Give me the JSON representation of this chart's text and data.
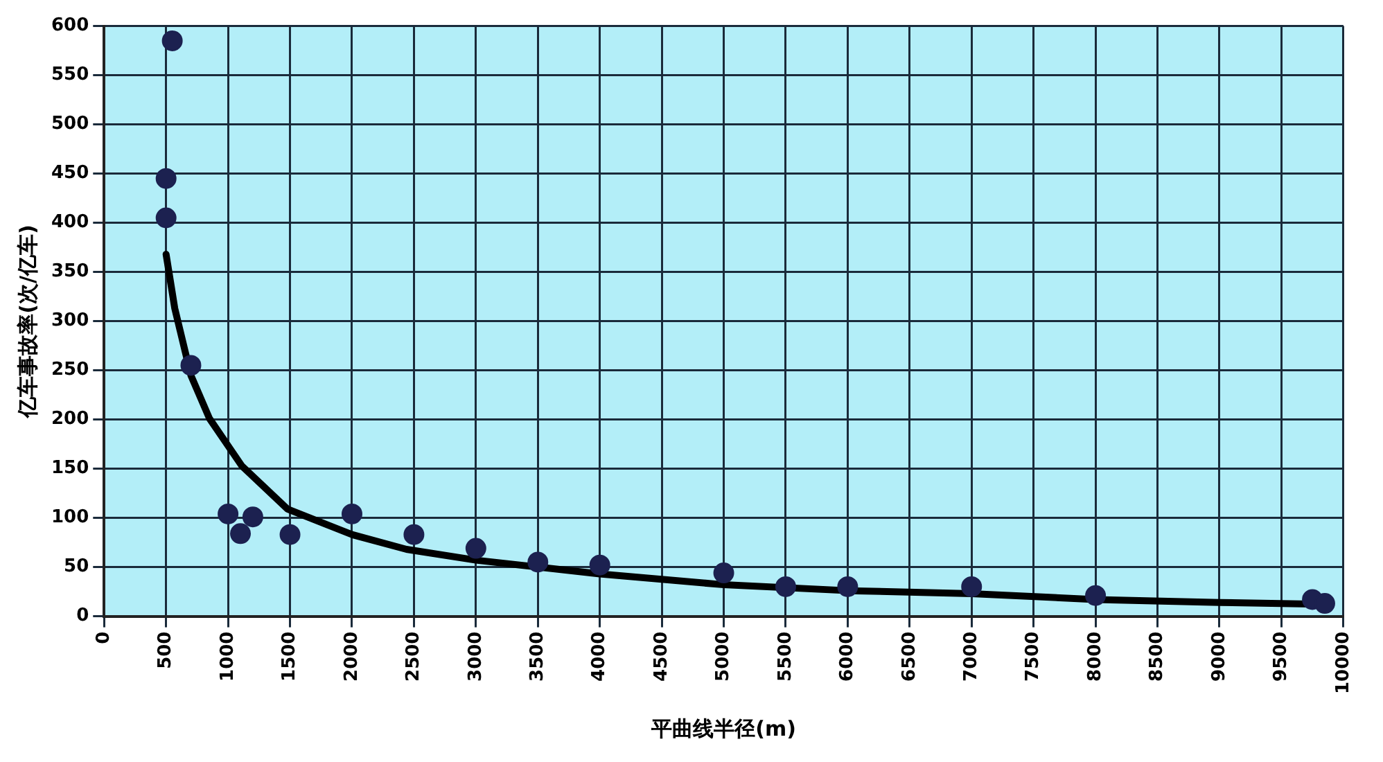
{
  "chart_data": {
    "type": "scatter",
    "xlabel": "平曲线半径(m)",
    "ylabel": "亿车事故率(次/亿车)",
    "xlim": [
      0,
      10000
    ],
    "xticks": [
      0,
      500,
      1000,
      1500,
      2000,
      2500,
      3000,
      3500,
      4000,
      4500,
      5000,
      5500,
      6000,
      6500,
      7000,
      7500,
      8000,
      8500,
      9000,
      9500,
      10000
    ],
    "ylim": [
      0,
      600
    ],
    "yticks": [
      0,
      50,
      100,
      150,
      200,
      250,
      300,
      350,
      400,
      450,
      500,
      550,
      600
    ],
    "grid": true,
    "legend": false,
    "marker": "circle",
    "series": [
      {
        "color": "#1c2150",
        "x": [
          500,
          500,
          550,
          700,
          1000,
          1100,
          1200,
          1500,
          2000,
          2500,
          3000,
          3500,
          4000,
          5000,
          5500,
          6000,
          7000,
          8000,
          9750,
          9850
        ],
        "values": [
          405,
          445,
          585,
          255,
          104,
          84,
          101,
          83,
          104,
          83,
          69,
          55,
          52,
          44,
          30,
          30,
          30,
          21,
          17,
          13
        ]
      },
      {
        "type": "line",
        "color": "#000000",
        "marker": "none",
        "x": [
          500,
          570,
          700,
          850,
          1110,
          1480,
          2000,
          2440,
          3000,
          3500,
          4000,
          5000,
          6000,
          7000,
          8000,
          9000,
          9900
        ],
        "values": [
          368,
          313,
          245,
          201,
          153,
          109,
          83,
          68,
          57,
          50,
          43,
          32,
          26,
          23,
          17,
          14,
          12
        ]
      }
    ]
  }
}
